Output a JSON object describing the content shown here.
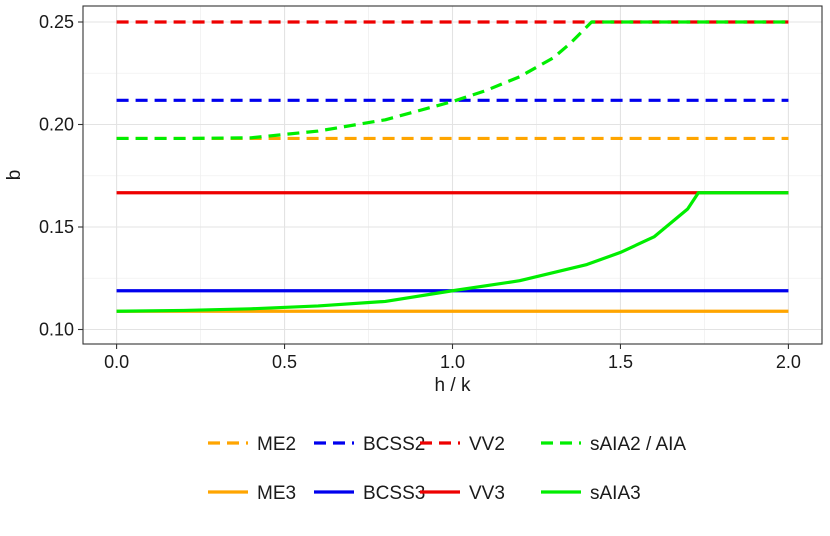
{
  "chart_data": {
    "type": "line",
    "title": "",
    "xlabel": "h / k",
    "ylabel": "b",
    "xlim": [
      -0.1,
      2.1
    ],
    "ylim": [
      0.1,
      0.25
    ],
    "x_ticks": [
      "0.0",
      "0.5",
      "1.0",
      "1.5",
      "2.0"
    ],
    "x_tick_values": [
      0.0,
      0.5,
      1.0,
      1.5,
      2.0
    ],
    "y_ticks": [
      "0.10",
      "0.15",
      "0.20",
      "0.25"
    ],
    "y_tick_values": [
      0.1,
      0.15,
      0.2,
      0.25
    ],
    "grid": true,
    "legend_position": "bottom",
    "series": [
      {
        "name": "ME2",
        "color": "#FFA500",
        "dash": "dashed",
        "x": [
          0.0,
          2.0
        ],
        "y": [
          0.1932,
          0.1932
        ]
      },
      {
        "name": "BCSS2",
        "color": "#0000EE",
        "dash": "dashed",
        "x": [
          0.0,
          2.0
        ],
        "y": [
          0.2118,
          0.2118
        ]
      },
      {
        "name": "VV2",
        "color": "#EE0000",
        "dash": "dashed",
        "x": [
          0.0,
          2.0
        ],
        "y": [
          0.25,
          0.25
        ]
      },
      {
        "name": "sAIA2 / AIA",
        "color": "#00EE00",
        "dash": "dashed",
        "x": [
          0.0,
          0.2,
          0.4,
          0.6,
          0.8,
          1.0,
          1.1,
          1.2,
          1.3,
          1.35,
          1.414,
          1.6,
          1.8,
          2.0
        ],
        "y": [
          0.1932,
          0.1932,
          0.1935,
          0.1968,
          0.2023,
          0.2112,
          0.2166,
          0.2233,
          0.2325,
          0.2395,
          0.25,
          0.25,
          0.25,
          0.25
        ]
      },
      {
        "name": "ME3",
        "color": "#FFA500",
        "dash": "solid",
        "x": [
          0.0,
          2.0
        ],
        "y": [
          0.1089,
          0.1089
        ]
      },
      {
        "name": "BCSS3",
        "color": "#0000EE",
        "dash": "solid",
        "x": [
          0.0,
          2.0
        ],
        "y": [
          0.1189,
          0.1189
        ]
      },
      {
        "name": "VV3",
        "color": "#EE0000",
        "dash": "solid",
        "x": [
          0.0,
          2.0
        ],
        "y": [
          0.1667,
          0.1667
        ]
      },
      {
        "name": "sAIA3",
        "color": "#00EE00",
        "dash": "solid",
        "x": [
          0.0,
          0.2,
          0.4,
          0.6,
          0.8,
          1.0,
          1.2,
          1.4,
          1.5,
          1.6,
          1.7,
          1.732,
          1.8,
          2.0
        ],
        "y": [
          0.1089,
          0.1093,
          0.1101,
          0.1115,
          0.1137,
          0.1189,
          0.1238,
          0.1317,
          0.1376,
          0.1452,
          0.1588,
          0.1667,
          0.1667,
          0.1667
        ]
      }
    ]
  }
}
